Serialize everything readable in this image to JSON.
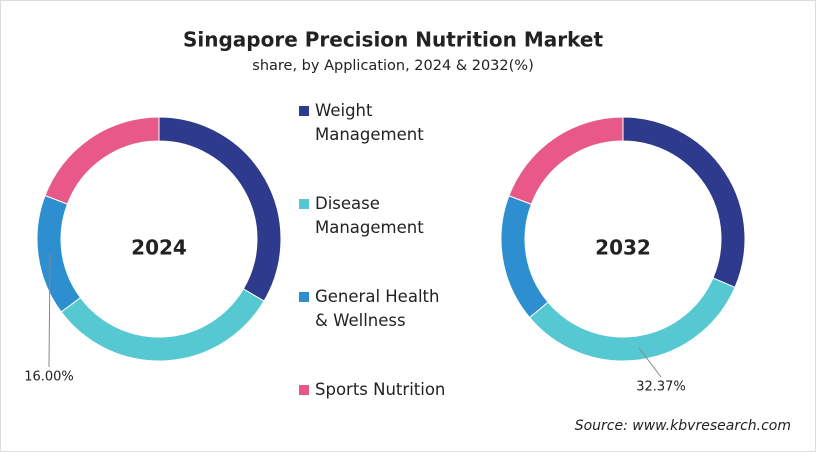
{
  "chart_data": {
    "type": "donut",
    "title": "Singapore Precision Nutrition Market",
    "subtitle": "share, by Application, 2024 & 2032(%)",
    "categories": [
      "Weight Management",
      "Disease Management",
      "General Health & Wellness",
      "Sports Nutrition"
    ],
    "colors": [
      "#2e3a8c",
      "#56c8d2",
      "#2d8fd0",
      "#e8598a"
    ],
    "series": [
      {
        "name": "2024",
        "values": [
          33.5,
          31.3,
          16.0,
          19.2
        ],
        "value_labels": [
          null,
          null,
          "16.00%",
          null
        ]
      },
      {
        "name": "2032",
        "values": [
          31.5,
          32.37,
          16.9,
          19.23
        ],
        "value_labels": [
          null,
          "32.37%",
          null,
          null
        ]
      }
    ],
    "source": "Source: www.kbvresearch.com"
  }
}
